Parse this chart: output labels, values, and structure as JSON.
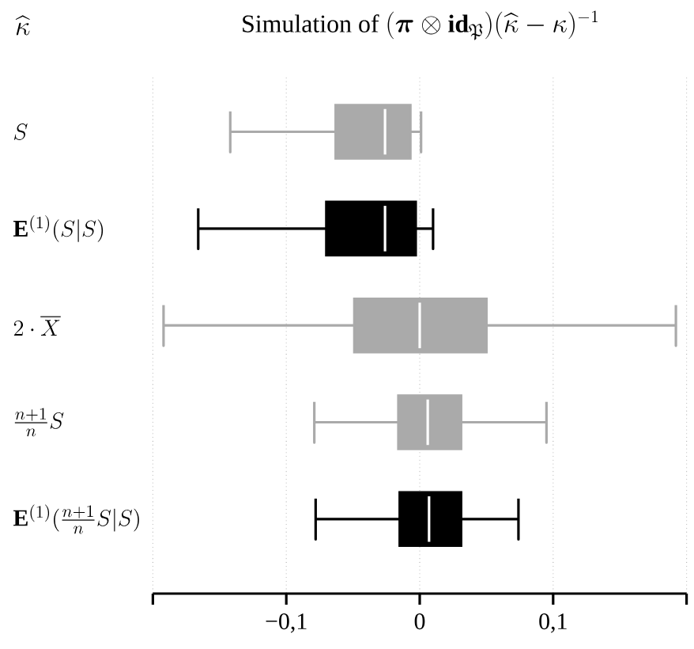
{
  "chart_data": {
    "type": "box",
    "orientation": "horizontal",
    "title": "\\text{Simulation of }(\\boldsymbol{\\pi}\\otimes\\mathbf{id}_{\\mathfrak{P}})(\\widehat{\\kappa}-\\kappa)^{-1}",
    "ylabel": "\\widehat{\\kappa}",
    "categories": [
      "S",
      "\\mathbf{E}^{(1)}(S|S)",
      "2\\cdot\\overline{X}",
      "\\frac{n+1}{n}S",
      "\\mathbf{E}^{(1)}(\\frac{n+1}{n}S|S)"
    ],
    "boxes": [
      {
        "low": -0.142,
        "q1": -0.063,
        "median": -0.026,
        "q3": -0.007,
        "high": 0.001
      },
      {
        "low": -0.166,
        "q1": -0.07,
        "median": -0.026,
        "q3": -0.003,
        "high": 0.01
      },
      {
        "low": -0.192,
        "q1": -0.049,
        "median": 0.0,
        "q3": 0.05,
        "high": 0.192
      },
      {
        "low": -0.079,
        "q1": -0.016,
        "median": 0.006,
        "q3": 0.031,
        "high": 0.095
      },
      {
        "low": -0.078,
        "q1": -0.015,
        "median": 0.007,
        "q3": 0.031,
        "high": 0.074
      }
    ],
    "colors": [
      "#aaaaaa",
      "#000000",
      "#aaaaaa",
      "#aaaaaa",
      "#000000"
    ],
    "xlim": [
      -0.2,
      0.2
    ],
    "xticks": [
      {
        "value": -0.2,
        "label": null
      },
      {
        "value": -0.1,
        "label": "−0,1"
      },
      {
        "value": 0,
        "label": "0"
      },
      {
        "value": 0.1,
        "label": "0,1"
      },
      {
        "value": 0.2,
        "label": null
      }
    ],
    "grid": "x"
  }
}
